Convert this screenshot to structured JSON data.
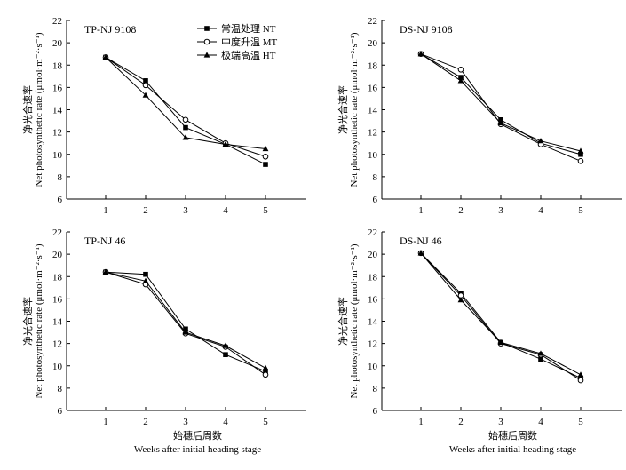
{
  "chart_data": [
    {
      "type": "line",
      "title": "TP-NJ 9108",
      "x": [
        1,
        2,
        3,
        4,
        5
      ],
      "xticks": [
        "1",
        "2",
        "3",
        "4",
        "5"
      ],
      "yticks": [
        "6",
        "8",
        "10",
        "12",
        "14",
        "16",
        "18",
        "20",
        "22"
      ],
      "ylim": [
        6,
        22
      ],
      "ylabel_cn": "净光合速率",
      "ylabel_en": "Net photosynthetic rate (μmol·m⁻²·s⁻¹)",
      "xlabel_cn": "",
      "xlabel_en": "",
      "legend": "top-center",
      "series": [
        {
          "name": "常温处理 NT",
          "marker": "square",
          "values": [
            18.7,
            16.6,
            12.4,
            10.9,
            9.1
          ]
        },
        {
          "name": "中度升温 MT",
          "marker": "circle",
          "values": [
            18.7,
            16.2,
            13.1,
            11.0,
            9.8
          ]
        },
        {
          "name": "极端高温 HT",
          "marker": "triangle",
          "values": [
            18.7,
            15.3,
            11.5,
            10.9,
            10.5
          ]
        }
      ]
    },
    {
      "type": "line",
      "title": "DS-NJ 9108",
      "x": [
        1,
        2,
        3,
        4,
        5
      ],
      "xticks": [
        "1",
        "2",
        "3",
        "4",
        "5"
      ],
      "yticks": [
        "6",
        "8",
        "10",
        "12",
        "14",
        "16",
        "18",
        "20",
        "22"
      ],
      "ylim": [
        6,
        22
      ],
      "ylabel_cn": "净光合速率",
      "ylabel_en": "Net photosynthetic rate (μmol·m⁻²·s⁻¹)",
      "xlabel_cn": "",
      "xlabel_en": "",
      "series": [
        {
          "name": "常温处理 NT",
          "marker": "square",
          "values": [
            19.0,
            16.9,
            13.1,
            11.0,
            10.0
          ]
        },
        {
          "name": "中度升温 MT",
          "marker": "circle",
          "values": [
            19.0,
            17.6,
            12.7,
            10.9,
            9.4
          ]
        },
        {
          "name": "极端高温 HT",
          "marker": "triangle",
          "values": [
            19.0,
            16.6,
            12.8,
            11.2,
            10.3
          ]
        }
      ]
    },
    {
      "type": "line",
      "title": "TP-NJ 46",
      "x": [
        1,
        2,
        3,
        4,
        5
      ],
      "xticks": [
        "1",
        "2",
        "3",
        "4",
        "5"
      ],
      "yticks": [
        "6",
        "8",
        "10",
        "12",
        "14",
        "16",
        "18",
        "20",
        "22"
      ],
      "ylim": [
        6,
        22
      ],
      "ylabel_cn": "净光合速率",
      "ylabel_en": "Net photosynthetic rate (μmol·m⁻²·s⁻¹)",
      "xlabel_cn": "始穗后周数",
      "xlabel_en": "Weeks after initial heading stage",
      "series": [
        {
          "name": "常温处理 NT",
          "marker": "square",
          "values": [
            18.4,
            18.2,
            13.3,
            11.0,
            9.5
          ]
        },
        {
          "name": "中度升温 MT",
          "marker": "circle",
          "values": [
            18.4,
            17.3,
            12.9,
            11.7,
            9.2
          ]
        },
        {
          "name": "极端高温 HT",
          "marker": "triangle",
          "values": [
            18.4,
            17.6,
            13.0,
            11.8,
            9.8
          ]
        }
      ]
    },
    {
      "type": "line",
      "title": "DS-NJ 46",
      "x": [
        1,
        2,
        3,
        4,
        5
      ],
      "xticks": [
        "1",
        "2",
        "3",
        "4",
        "5"
      ],
      "yticks": [
        "6",
        "8",
        "10",
        "12",
        "14",
        "16",
        "18",
        "20",
        "22"
      ],
      "ylim": [
        6,
        22
      ],
      "ylabel_cn": "净光合速率",
      "ylabel_en": "Net photosynthetic rate (μmol·m⁻²·s⁻¹)",
      "xlabel_cn": "始穗后周数",
      "xlabel_en": "Weeks after initial heading stage",
      "series": [
        {
          "name": "常温处理 NT",
          "marker": "square",
          "values": [
            20.1,
            16.5,
            12.1,
            10.6,
            8.9
          ]
        },
        {
          "name": "中度升温 MT",
          "marker": "circle",
          "values": [
            20.1,
            16.3,
            12.0,
            11.0,
            8.7
          ]
        },
        {
          "name": "极端高温 HT",
          "marker": "triangle",
          "values": [
            20.1,
            15.9,
            12.1,
            11.1,
            9.2
          ]
        }
      ]
    }
  ]
}
